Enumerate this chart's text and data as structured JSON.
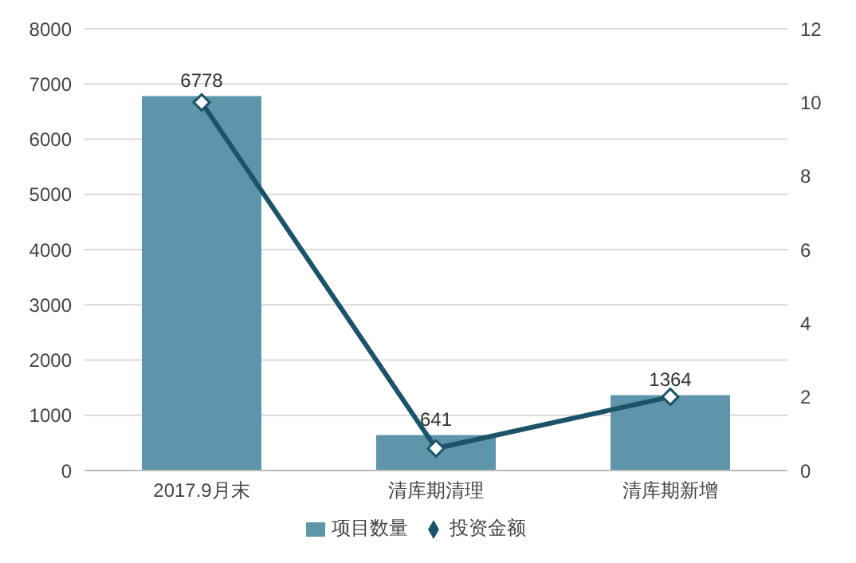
{
  "chart_data": {
    "type": "bar",
    "categories": [
      "2017.9月末",
      "清库期清理",
      "清库期新增"
    ],
    "series": [
      {
        "name": "项目数量",
        "color": "#5f95aa",
        "values": [
          6778,
          641,
          1364
        ],
        "value_labels": [
          "6778",
          "641",
          "1364"
        ]
      },
      {
        "name": "投资金额",
        "type": "line",
        "axis": "y2",
        "color": "#1b5468",
        "values": [
          10.0,
          0.6,
          2.0
        ],
        "marker": "diamond"
      }
    ],
    "ylim": [
      0,
      8000
    ],
    "yticks": [
      0,
      1000,
      2000,
      3000,
      4000,
      5000,
      6000,
      7000,
      8000
    ],
    "y2lim": [
      0,
      12
    ],
    "y2ticks": [
      0,
      2,
      4,
      6,
      8,
      10,
      12
    ],
    "grid": "y",
    "legend": "bottom"
  }
}
